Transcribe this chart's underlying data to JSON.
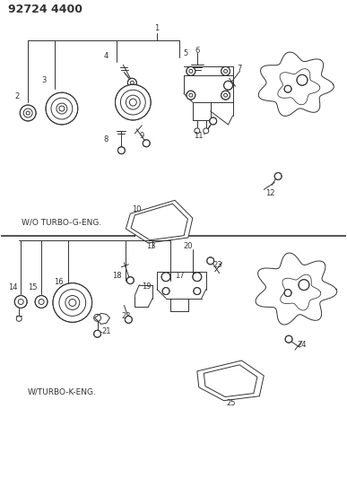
{
  "title": "92724 4400",
  "bg": "#ffffff",
  "lc": "#333333",
  "top_label": "W/O TURBO-G-ENG.",
  "bottom_label": "W/TURBO-K-ENG.",
  "figsize": [
    3.87,
    5.33
  ],
  "dpi": 100
}
